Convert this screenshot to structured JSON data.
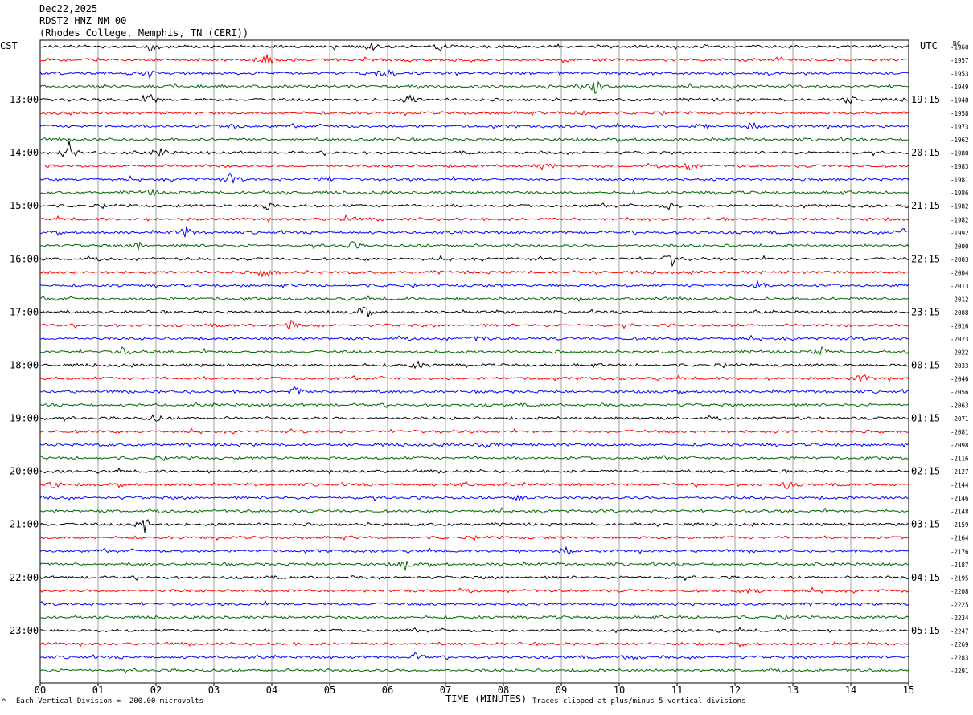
{
  "header": {
    "date": "Dec22,2025",
    "station": "RDST2 HNZ NM 00",
    "location": "(Rhodes College, Memphis, TN (CERI))"
  },
  "left_zone": "CST",
  "right_zone": "UTC",
  "dc_label": "DC",
  "footer": {
    "scale_note": "Each Vertical Division =  200.00 microvolts",
    "xlabel": "TIME (MINUTES)",
    "clip_note": "Traces clipped at plus/minus 5 vertical divisions",
    "corner_mark": "^"
  },
  "chart_data": {
    "type": "line",
    "title": "RDST2 HNZ NM 00",
    "xlabel": "TIME (MINUTES)",
    "xlim": [
      0,
      15
    ],
    "x_ticks": [
      "00",
      "01",
      "02",
      "03",
      "04",
      "05",
      "06",
      "07",
      "08",
      "09",
      "10",
      "11",
      "12",
      "13",
      "14",
      "15"
    ],
    "trace_colors": [
      "#000000",
      "#ff0000",
      "#0000ff",
      "#006400"
    ],
    "left_hour_labels": [
      "13:00",
      "14:00",
      "15:00",
      "16:00",
      "17:00",
      "18:00",
      "19:00",
      "20:00",
      "21:00",
      "22:00",
      "23:00"
    ],
    "right_hour_labels": [
      "19:15",
      "20:15",
      "21:15",
      "22:15",
      "23:15",
      "00:15",
      "01:15",
      "02:15",
      "03:15",
      "04:15",
      "05:15"
    ],
    "dc_offsets": [
      "-1960",
      "-1957",
      "-1953",
      "-1949",
      "-1948",
      "-1958",
      "-1973",
      "-1962",
      "-1980",
      "-1983",
      "-1981",
      "-1986",
      "-1982",
      "-1982",
      "-1992",
      "-2000",
      "-2003",
      "-2004",
      "-2013",
      "-2012",
      "-2008",
      "-2016",
      "-2023",
      "-2022",
      "-2033",
      "-2046",
      "-2056",
      "-2063",
      "-2071",
      "-2081",
      "-2098",
      "-2116",
      "-2127",
      "-2144",
      "-2146",
      "-2148",
      "-2159",
      "-2164",
      "-2176",
      "-2187",
      "-2195",
      "-2208",
      "-2225",
      "-2234",
      "-2247",
      "-2269",
      "-2283",
      "-2291"
    ],
    "events": [
      {
        "trace": 0,
        "minute": 1.9,
        "amp": 0.7
      },
      {
        "trace": 0,
        "minute": 5.7,
        "amp": 0.8
      },
      {
        "trace": 0,
        "minute": 6.9,
        "amp": 0.7
      },
      {
        "trace": 1,
        "minute": 3.9,
        "amp": 1.3
      },
      {
        "trace": 2,
        "minute": 6.0,
        "amp": 0.9
      },
      {
        "trace": 2,
        "minute": 1.9,
        "amp": 0.5
      },
      {
        "trace": 3,
        "minute": 9.6,
        "amp": 1.2
      },
      {
        "trace": 4,
        "minute": 1.9,
        "amp": 1.0
      },
      {
        "trace": 4,
        "minute": 6.4,
        "amp": 0.8
      },
      {
        "trace": 4,
        "minute": 14.0,
        "amp": 0.7
      },
      {
        "trace": 5,
        "minute": 9.4,
        "amp": 0.5
      },
      {
        "trace": 6,
        "minute": 3.3,
        "amp": 0.6
      },
      {
        "trace": 6,
        "minute": 11.4,
        "amp": 0.6
      },
      {
        "trace": 6,
        "minute": 12.3,
        "amp": 0.6
      },
      {
        "trace": 8,
        "minute": 0.5,
        "amp": 1.6
      },
      {
        "trace": 8,
        "minute": 2.1,
        "amp": 0.7
      },
      {
        "trace": 9,
        "minute": 8.7,
        "amp": 0.8
      },
      {
        "trace": 9,
        "minute": 11.2,
        "amp": 0.7
      },
      {
        "trace": 10,
        "minute": 3.3,
        "amp": 0.8
      },
      {
        "trace": 10,
        "minute": 4.9,
        "amp": 0.6
      },
      {
        "trace": 11,
        "minute": 1.9,
        "amp": 0.6
      },
      {
        "trace": 12,
        "minute": 3.9,
        "amp": 0.8
      },
      {
        "trace": 12,
        "minute": 10.9,
        "amp": 0.7
      },
      {
        "trace": 13,
        "minute": 5.3,
        "amp": 0.5
      },
      {
        "trace": 14,
        "minute": 2.5,
        "amp": 1.0
      },
      {
        "trace": 14,
        "minute": 14.9,
        "amp": 0.8
      },
      {
        "trace": 15,
        "minute": 1.7,
        "amp": 0.6
      },
      {
        "trace": 15,
        "minute": 5.4,
        "amp": 0.6
      },
      {
        "trace": 16,
        "minute": 10.9,
        "amp": 1.1
      },
      {
        "trace": 17,
        "minute": 3.9,
        "amp": 1.0
      },
      {
        "trace": 18,
        "minute": 12.4,
        "amp": 0.6
      },
      {
        "trace": 20,
        "minute": 5.6,
        "amp": 1.0
      },
      {
        "trace": 21,
        "minute": 4.3,
        "amp": 0.7
      },
      {
        "trace": 22,
        "minute": 7.6,
        "amp": 0.6
      },
      {
        "trace": 23,
        "minute": 1.4,
        "amp": 0.7
      },
      {
        "trace": 23,
        "minute": 13.5,
        "amp": 0.6
      },
      {
        "trace": 24,
        "minute": 6.5,
        "amp": 0.6
      },
      {
        "trace": 25,
        "minute": 14.2,
        "amp": 0.7
      },
      {
        "trace": 26,
        "minute": 4.4,
        "amp": 0.8
      },
      {
        "trace": 28,
        "minute": 2.0,
        "amp": 0.7
      },
      {
        "trace": 30,
        "minute": 7.7,
        "amp": 0.6
      },
      {
        "trace": 33,
        "minute": 0.2,
        "amp": 0.6
      },
      {
        "trace": 33,
        "minute": 12.9,
        "amp": 0.6
      },
      {
        "trace": 33,
        "minute": 7.3,
        "amp": 0.5
      },
      {
        "trace": 34,
        "minute": 8.3,
        "amp": 0.7
      },
      {
        "trace": 36,
        "minute": 1.8,
        "amp": 1.3
      },
      {
        "trace": 38,
        "minute": 9.1,
        "amp": 0.6
      },
      {
        "trace": 39,
        "minute": 6.3,
        "amp": 0.8
      },
      {
        "trace": 41,
        "minute": 12.3,
        "amp": 0.6
      },
      {
        "trace": 46,
        "minute": 6.5,
        "amp": 0.6
      },
      {
        "trace": 46,
        "minute": 10.2,
        "amp": 0.7
      }
    ]
  }
}
